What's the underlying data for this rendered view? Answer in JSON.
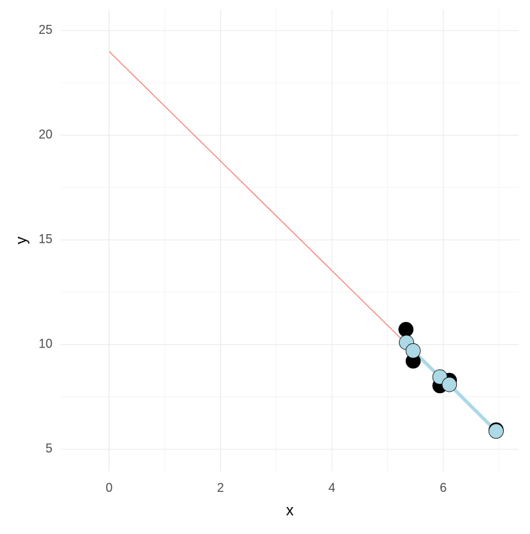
{
  "chart_data": {
    "type": "scatter",
    "x_label": "x",
    "y_label": "y",
    "xlim": [
      -0.87,
      7.36
    ],
    "ylim": [
      3.95,
      26
    ],
    "xticks": [
      0,
      2,
      4,
      6
    ],
    "yticks": [
      5,
      10,
      15,
      20,
      25
    ],
    "x_minor_ticks": [
      1,
      3,
      5,
      7
    ],
    "y_minor_ticks": [
      7.5,
      12.5,
      17.5,
      22.5
    ],
    "grid": true,
    "series": [
      {
        "style": "line",
        "color": "#f8766d",
        "x": [
          0,
          5.33
        ],
        "values": [
          24,
          10.05
        ]
      },
      {
        "style": "line",
        "color": "#add8e6",
        "x": [
          5.34,
          5.46,
          5.94,
          6.11,
          6.95
        ],
        "values": [
          10.1,
          9.7,
          8.45,
          8.09,
          5.86
        ]
      },
      {
        "style": "point",
        "color": "#000000",
        "x": [
          5.33,
          5.46,
          5.94,
          6.11,
          6.95
        ],
        "values": [
          10.72,
          9.21,
          8.03,
          8.29,
          5.92
        ]
      },
      {
        "style": "point",
        "color": "#add8e6",
        "x": [
          5.34,
          5.46,
          5.94,
          6.11,
          6.95
        ],
        "values": [
          10.1,
          9.7,
          8.45,
          8.09,
          5.86
        ]
      }
    ]
  }
}
